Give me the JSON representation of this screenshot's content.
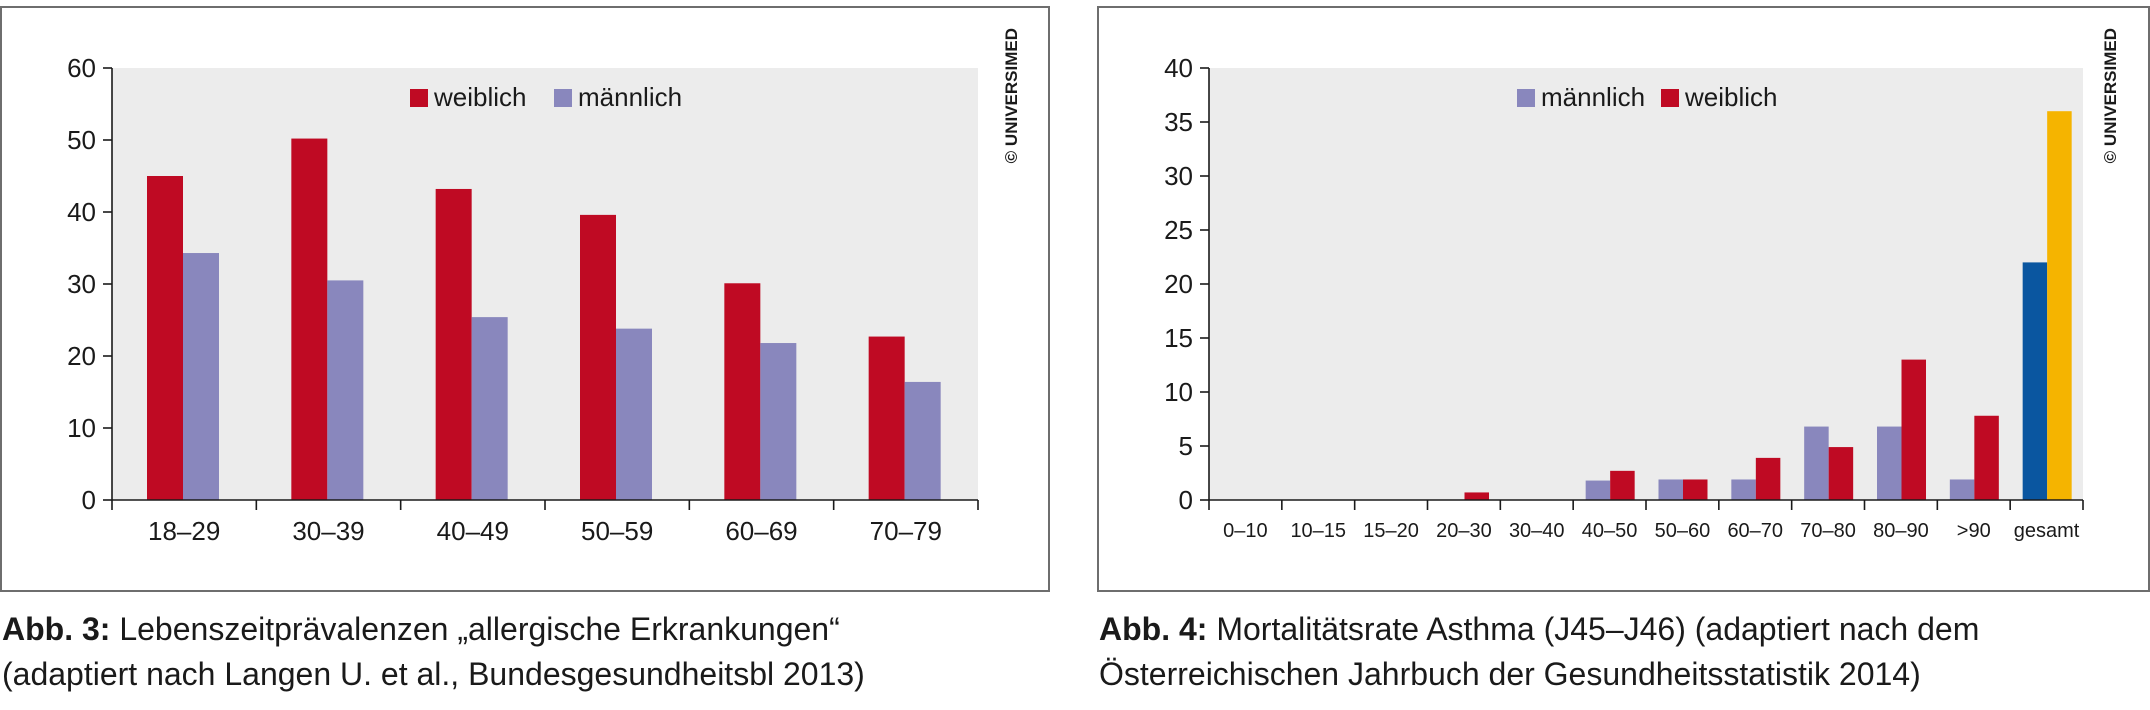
{
  "figures": [
    {
      "copyright": "© UNIVERSIMED",
      "caption_label": "Abb. 3:",
      "caption_line1": "Lebenszeitprävalenzen „allergische Erkrankungen“",
      "caption_line2": "(adaptiert nach Langen U. et al., Bundesgesundheitsbl 2013)"
    },
    {
      "copyright": "© UNIVERSIMED",
      "caption_label": "Abb. 4:",
      "caption_line1": "Mortalitätsrate Asthma (J45–J46) (adaptiert nach dem",
      "caption_line2": "Österreichischen Jahrbuch der Gesundheitsstatistik 2014)"
    }
  ],
  "chart_data": [
    {
      "type": "bar",
      "categories": [
        "18–29",
        "30–39",
        "40–49",
        "50–59",
        "60–69",
        "70–79"
      ],
      "series": [
        {
          "name": "weiblich",
          "color": "#bf0a23",
          "values": [
            45,
            50.2,
            43.2,
            39.6,
            30.1,
            22.7
          ]
        },
        {
          "name": "männlich",
          "color": "#8987bd",
          "values": [
            34.3,
            30.5,
            25.4,
            23.8,
            21.8,
            16.4
          ]
        }
      ],
      "legend": [
        {
          "name": "weiblich",
          "color": "#bf0a23"
        },
        {
          "name": "männlich",
          "color": "#8987bd"
        }
      ],
      "ylim": [
        0,
        60
      ],
      "yticks": [
        0,
        10,
        20,
        30,
        40,
        50,
        60
      ],
      "grid": false,
      "legend_position": "top-center",
      "plot_background": "#ececec"
    },
    {
      "type": "bar",
      "categories": [
        "0–10",
        "10–15",
        "15–20",
        "20–30",
        "30–40",
        "40–50",
        "50–60",
        "60–70",
        "70–80",
        "80–90",
        ">90",
        "gesamt"
      ],
      "series": [
        {
          "name": "männlich",
          "color": "#8987bd",
          "values": [
            0,
            0,
            0,
            0,
            0,
            1.8,
            1.9,
            1.9,
            6.8,
            6.8,
            1.9,
            22
          ]
        },
        {
          "name": "weiblich",
          "color": "#bf0a23",
          "values": [
            0,
            0,
            0,
            0.7,
            0,
            2.7,
            1.9,
            3.9,
            4.9,
            13,
            7.8,
            36
          ]
        }
      ],
      "gesamt_colors": [
        "#0a56a0",
        "#f5b400"
      ],
      "legend": [
        {
          "name": "männlich",
          "color": "#8987bd"
        },
        {
          "name": "weiblich",
          "color": "#bf0a23"
        }
      ],
      "ylim": [
        0,
        40
      ],
      "yticks": [
        0,
        5,
        10,
        15,
        20,
        25,
        30,
        35,
        40
      ],
      "grid": false,
      "legend_position": "top-center",
      "plot_background": "#ececec"
    }
  ]
}
